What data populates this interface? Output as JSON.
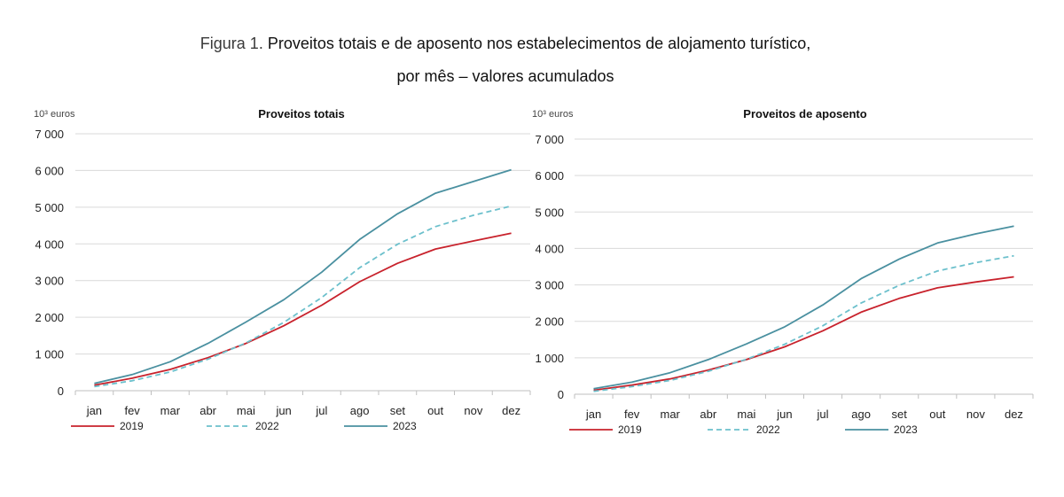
{
  "figure": {
    "title_prefix": "Figura 1.",
    "title_line1": "Proveitos totais e de aposento nos estabelecimentos de alojamento turístico,",
    "title_line2": "por mês – valores acumulados"
  },
  "colors": {
    "2019": "#c8222c",
    "2022": "#6cc0cc",
    "2023": "#4a90a0",
    "grid": "#d9d9d9",
    "axis": "#bfbfbf"
  },
  "chart_data": [
    {
      "type": "line",
      "title": "Proveitos totais",
      "ylabel": "10³ euros",
      "xlabel": "",
      "ylim": [
        0,
        7000
      ],
      "yticks": [
        0,
        1000,
        2000,
        3000,
        4000,
        5000,
        6000,
        7000
      ],
      "ytick_labels": [
        "0",
        "1 000",
        "2 000",
        "3 000",
        "4 000",
        "5 000",
        "6 000",
        "7 000"
      ],
      "grid": true,
      "legend": "bottom",
      "categories": [
        "jan",
        "fev",
        "mar",
        "abr",
        "mai",
        "jun",
        "jul",
        "ago",
        "set",
        "out",
        "nov",
        "dez"
      ],
      "series": [
        {
          "name": "2019",
          "style": "solid",
          "color": "#c8222c",
          "values": [
            150,
            340,
            580,
            900,
            1290,
            1770,
            2330,
            2970,
            3470,
            3860,
            4080,
            4290
          ]
        },
        {
          "name": "2022",
          "style": "dashed",
          "color": "#6cc0cc",
          "values": [
            110,
            270,
            510,
            860,
            1300,
            1860,
            2540,
            3350,
            3990,
            4470,
            4780,
            5030
          ]
        },
        {
          "name": "2023",
          "style": "solid",
          "color": "#4a90a0",
          "values": [
            200,
            440,
            790,
            1290,
            1870,
            2480,
            3230,
            4120,
            4820,
            5380,
            5700,
            6020
          ]
        }
      ]
    },
    {
      "type": "line",
      "title": "Proveitos de aposento",
      "ylabel": "10³ euros",
      "xlabel": "",
      "ylim": [
        0,
        7000
      ],
      "yticks": [
        0,
        1000,
        2000,
        3000,
        4000,
        5000,
        6000,
        7000
      ],
      "ytick_labels": [
        "0",
        "1 000",
        "2 000",
        "3 000",
        "4 000",
        "5 000",
        "6 000",
        "7 000"
      ],
      "grid": true,
      "legend": "bottom",
      "categories": [
        "jan",
        "fev",
        "mar",
        "abr",
        "mai",
        "jun",
        "jul",
        "ago",
        "set",
        "out",
        "nov",
        "dez"
      ],
      "series": [
        {
          "name": "2019",
          "style": "solid",
          "color": "#c8222c",
          "values": [
            110,
            250,
            420,
            660,
            950,
            1300,
            1740,
            2250,
            2630,
            2920,
            3080,
            3220
          ]
        },
        {
          "name": "2022",
          "style": "dashed",
          "color": "#6cc0cc",
          "values": [
            80,
            210,
            380,
            630,
            960,
            1370,
            1880,
            2500,
            2990,
            3380,
            3610,
            3800
          ]
        },
        {
          "name": "2023",
          "style": "solid",
          "color": "#4a90a0",
          "values": [
            150,
            330,
            590,
            950,
            1380,
            1850,
            2450,
            3170,
            3710,
            4150,
            4400,
            4610
          ]
        }
      ]
    }
  ]
}
